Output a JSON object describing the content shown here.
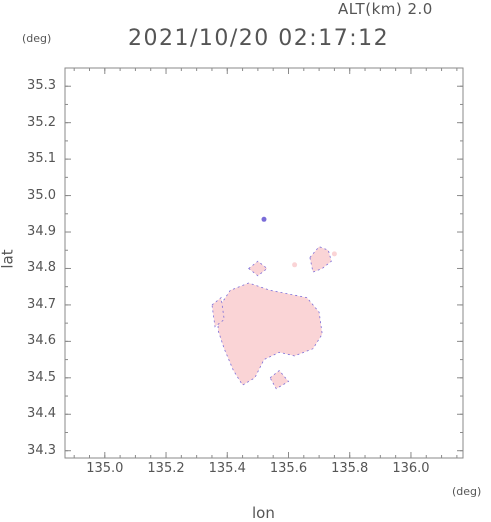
{
  "header": {
    "altitude_label": "ALT(km)",
    "altitude_value": "2.0",
    "timestamp": "2021/10/20 02:17:12"
  },
  "axes": {
    "x_label": "lon",
    "y_label": "lat",
    "x_unit": "(deg)",
    "y_unit": "(deg)"
  },
  "chart_data": {
    "type": "heatmap",
    "xlabel": "lon",
    "ylabel": "lat",
    "xlim": [
      134.87,
      136.17
    ],
    "ylim": [
      34.28,
      35.35
    ],
    "x_ticks": [
      "135.0",
      "135.2",
      "135.4",
      "135.6",
      "135.8",
      "136.0"
    ],
    "y_ticks": [
      "35.3",
      "35.2",
      "35.1",
      "35.0",
      "34.9",
      "34.8",
      "34.7",
      "34.6",
      "34.5",
      "34.4",
      "34.3"
    ],
    "grid": false,
    "colors": {
      "main_echo": "#fad4d6",
      "weak_echo": "#fde6e6",
      "edge": "#7a6cd8",
      "negative": "#c9cff5"
    },
    "echo_regions": [
      {
        "name": "main",
        "points": [
          [
            135.37,
            34.69
          ],
          [
            135.41,
            34.74
          ],
          [
            135.47,
            34.76
          ],
          [
            135.54,
            34.74
          ],
          [
            135.6,
            34.73
          ],
          [
            135.66,
            34.72
          ],
          [
            135.7,
            34.68
          ],
          [
            135.71,
            34.62
          ],
          [
            135.68,
            34.58
          ],
          [
            135.62,
            34.56
          ],
          [
            135.57,
            34.57
          ],
          [
            135.52,
            34.55
          ],
          [
            135.49,
            34.5
          ],
          [
            135.45,
            34.48
          ],
          [
            135.42,
            34.52
          ],
          [
            135.39,
            34.58
          ],
          [
            135.37,
            34.63
          ]
        ]
      },
      {
        "name": "north-east",
        "points": [
          [
            135.67,
            34.83
          ],
          [
            135.7,
            34.86
          ],
          [
            135.73,
            34.85
          ],
          [
            135.74,
            34.82
          ],
          [
            135.71,
            34.8
          ],
          [
            135.68,
            34.79
          ]
        ]
      },
      {
        "name": "west-patch",
        "points": [
          [
            135.35,
            34.7
          ],
          [
            135.38,
            34.72
          ],
          [
            135.39,
            34.66
          ],
          [
            135.36,
            34.64
          ]
        ]
      },
      {
        "name": "north-small",
        "points": [
          [
            135.47,
            34.8
          ],
          [
            135.5,
            34.82
          ],
          [
            135.53,
            34.8
          ],
          [
            135.5,
            34.78
          ]
        ]
      },
      {
        "name": "south-tail",
        "points": [
          [
            135.54,
            34.5
          ],
          [
            135.57,
            34.52
          ],
          [
            135.6,
            34.49
          ],
          [
            135.56,
            34.47
          ]
        ]
      }
    ],
    "echo_points": [
      {
        "lon": 135.52,
        "lat": 34.935
      },
      {
        "lon": 135.75,
        "lat": 34.84
      },
      {
        "lon": 135.43,
        "lat": 34.72
      },
      {
        "lon": 135.62,
        "lat": 34.81
      }
    ]
  }
}
